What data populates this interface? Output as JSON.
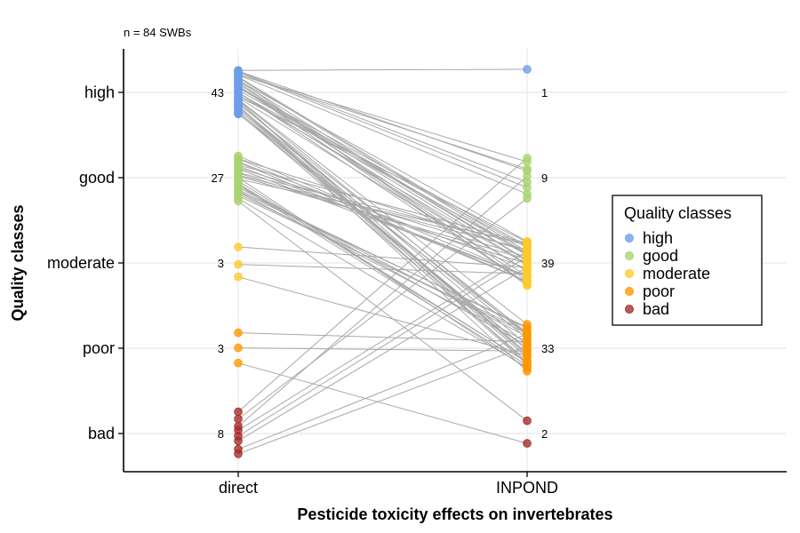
{
  "chart_data": {
    "type": "scatter",
    "subtitle": "n =  84 SWBs",
    "xlabel": "Pesticide toxicity effects on invertebrates",
    "ylabel": "Quality classes",
    "categories": [
      "direct",
      "INPOND"
    ],
    "y_classes": [
      "high",
      "good",
      "moderate",
      "poor",
      "bad"
    ],
    "counts": {
      "direct": [
        43,
        27,
        3,
        3,
        8
      ],
      "INPOND": [
        1,
        9,
        39,
        33,
        2
      ]
    },
    "colors": {
      "high": "#6d9eeb",
      "good": "#a9d46e",
      "moderate": "#ffca28",
      "poor": "#ff9900",
      "bad": "#a52a2a"
    },
    "legend": {
      "title": "Quality classes",
      "position": "right",
      "entries": [
        "high",
        "good",
        "moderate",
        "poor",
        "bad"
      ]
    },
    "transitions": [
      {
        "from": "high",
        "to": "high",
        "n": 1
      },
      {
        "from": "high",
        "to": "good",
        "n": 6
      },
      {
        "from": "high",
        "to": "moderate",
        "n": 20
      },
      {
        "from": "high",
        "to": "poor",
        "n": 16
      },
      {
        "from": "good",
        "to": "moderate",
        "n": 14
      },
      {
        "from": "good",
        "to": "poor",
        "n": 12
      },
      {
        "from": "good",
        "to": "bad",
        "n": 1
      },
      {
        "from": "moderate",
        "to": "moderate",
        "n": 2
      },
      {
        "from": "moderate",
        "to": "poor",
        "n": 1
      },
      {
        "from": "poor",
        "to": "poor",
        "n": 2
      },
      {
        "from": "poor",
        "to": "bad",
        "n": 1
      },
      {
        "from": "bad",
        "to": "good",
        "n": 3
      },
      {
        "from": "bad",
        "to": "moderate",
        "n": 3
      },
      {
        "from": "bad",
        "to": "poor",
        "n": 2
      }
    ],
    "grid": true
  }
}
